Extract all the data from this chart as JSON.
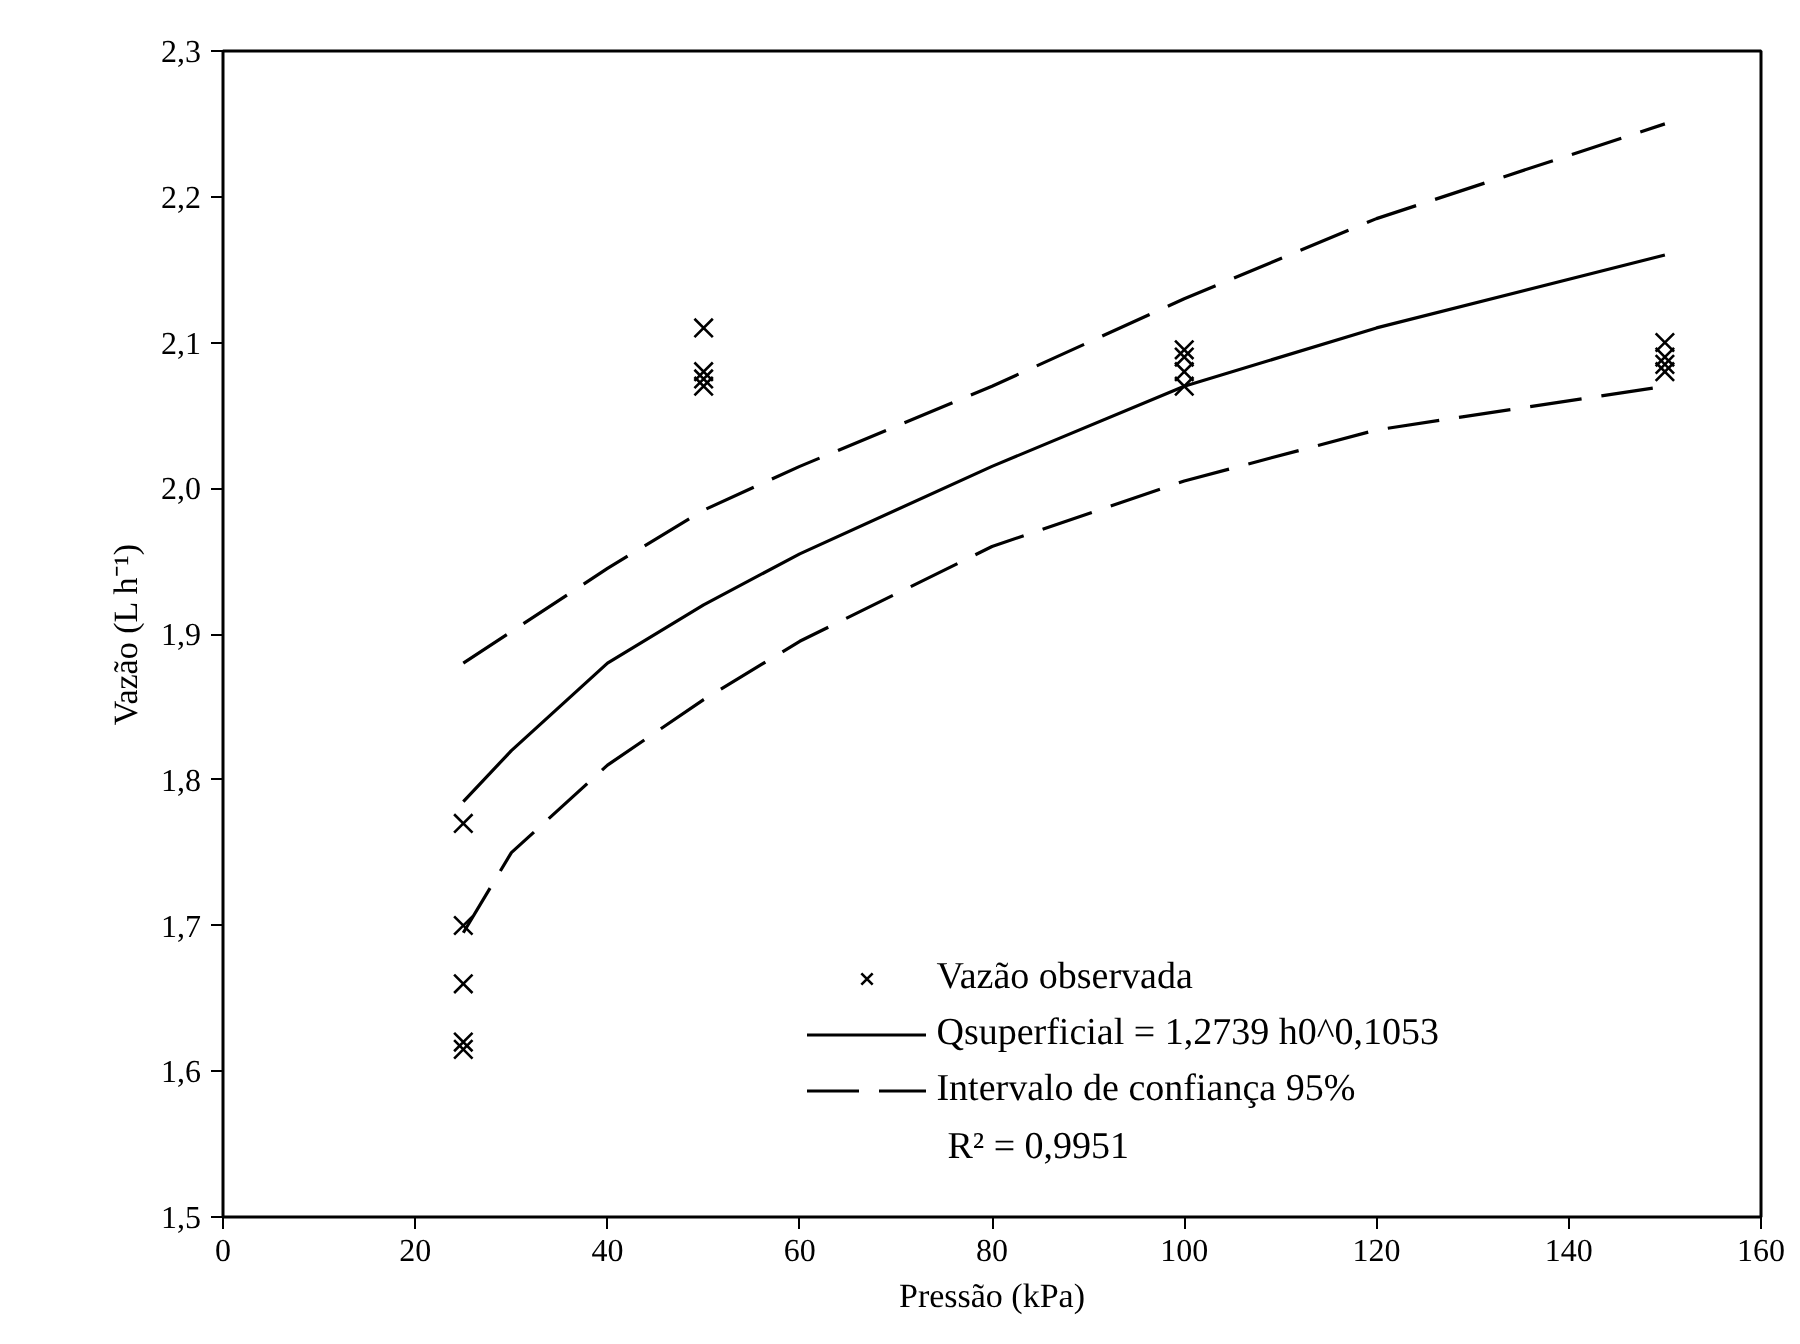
{
  "chart_data": {
    "type": "scatter",
    "xlabel": "Pressão (kPa)",
    "ylabel": "Vazão (L h⁻¹)",
    "xlim": [
      0,
      160
    ],
    "xticks": [
      0,
      20,
      40,
      60,
      80,
      100,
      120,
      140,
      160
    ],
    "ylim": [
      1.5,
      2.3
    ],
    "yticks": [
      {
        "value": 1.5,
        "label": "1,5"
      },
      {
        "value": 1.6,
        "label": "1,6"
      },
      {
        "value": 1.7,
        "label": "1,7"
      },
      {
        "value": 1.8,
        "label": "1,8"
      },
      {
        "value": 1.9,
        "label": "1,9"
      },
      {
        "value": 2.0,
        "label": "2,0"
      },
      {
        "value": 2.1,
        "label": "2,1"
      },
      {
        "value": 2.2,
        "label": "2,2"
      },
      {
        "value": 2.3,
        "label": "2,3"
      }
    ],
    "grid": false,
    "legend": "bottom right",
    "series": [
      {
        "name": "Vazão observada",
        "marker": "cross",
        "color": "#000000",
        "x": [
          25,
          25,
          25,
          25,
          25,
          50,
          50,
          50,
          50,
          100,
          100,
          100,
          100,
          150,
          150,
          150,
          150
        ],
        "values": [
          1.77,
          1.7,
          1.66,
          1.62,
          1.615,
          2.11,
          2.08,
          2.075,
          2.07,
          2.095,
          2.09,
          2.08,
          2.07,
          2.1,
          2.09,
          2.085,
          2.08
        ]
      },
      {
        "name": "Qsuperficial = 1,2739 h0^0,1053",
        "type": "line",
        "line_style": "solid",
        "color": "#000000",
        "x": [
          25,
          30,
          40,
          50,
          60,
          80,
          100,
          120,
          150
        ],
        "values": [
          1.785,
          1.82,
          1.88,
          1.92,
          1.955,
          2.015,
          2.07,
          2.11,
          2.16
        ]
      },
      {
        "name": "Intervalo de confiança 95%",
        "type": "line",
        "line_style": "dashed",
        "color": "#000000",
        "x": [
          25,
          40,
          50,
          60,
          80,
          100,
          120,
          150
        ],
        "values": [
          1.88,
          1.945,
          1.985,
          2.015,
          2.07,
          2.13,
          2.185,
          2.25
        ]
      },
      {
        "type": "line",
        "line_style": "dashed",
        "color": "#000000",
        "x": [
          25,
          30,
          40,
          50,
          60,
          80,
          100,
          120,
          150
        ],
        "values": [
          1.695,
          1.75,
          1.81,
          1.855,
          1.895,
          1.96,
          2.005,
          2.04,
          2.07
        ]
      }
    ],
    "annotations": [
      "R² = 0,9951"
    ]
  }
}
